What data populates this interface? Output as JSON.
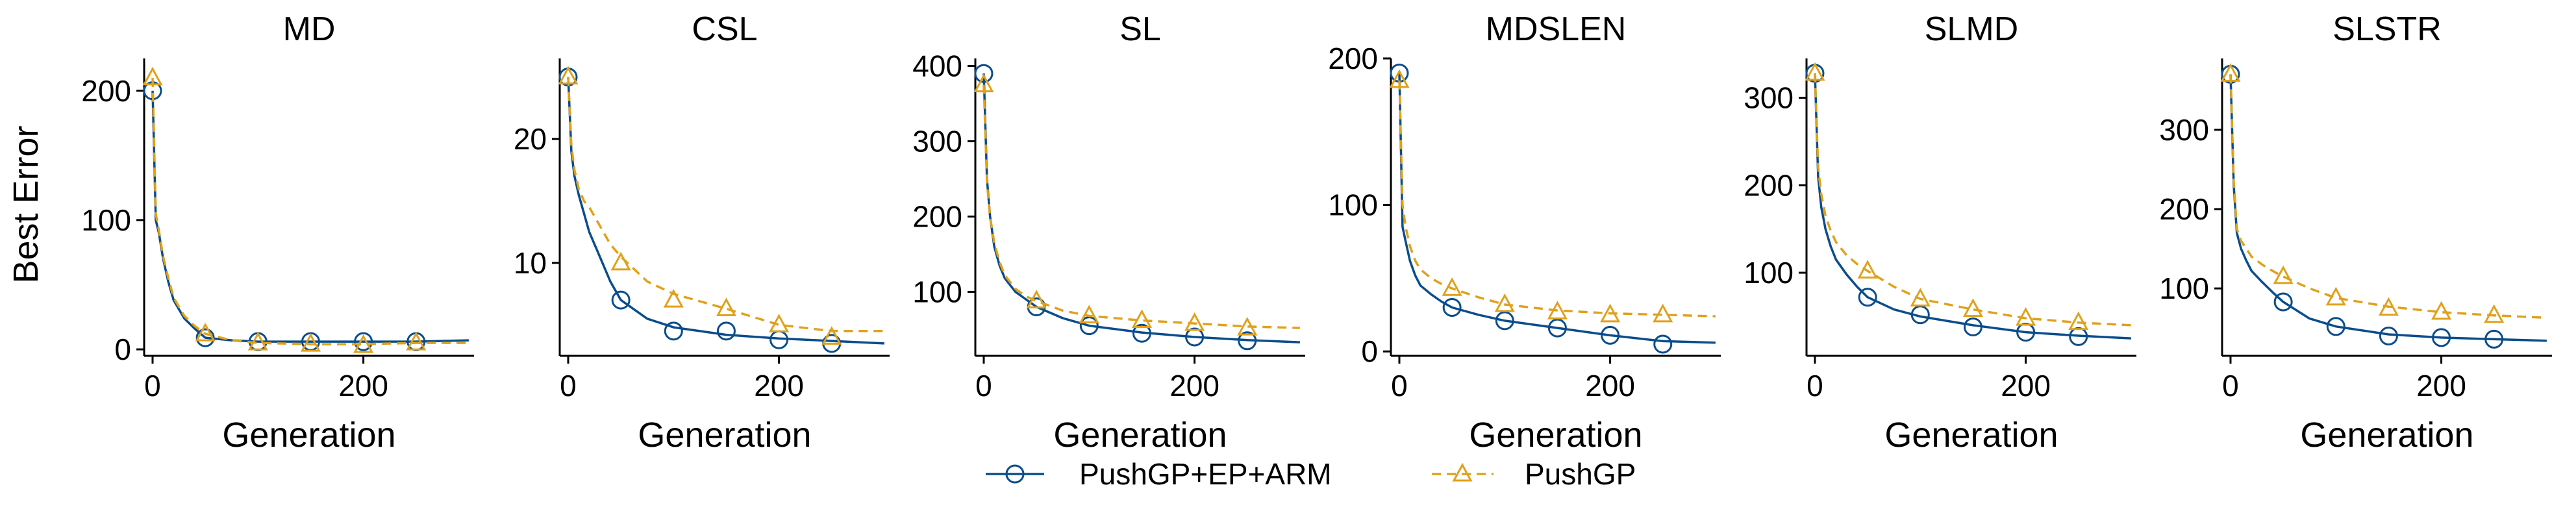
{
  "chart_data": [
    {
      "type": "line",
      "title": "MD",
      "xlabel": "Generation",
      "ylabel": "Best Error",
      "xlim": [
        -8,
        305
      ],
      "ylim": [
        -5,
        225
      ],
      "xticks": [
        0,
        200
      ],
      "yticks": [
        0,
        100,
        200
      ],
      "series": [
        {
          "name": "PushGP+EP+ARM",
          "x": [
            0,
            3,
            6,
            10,
            15,
            20,
            30,
            40,
            50,
            75,
            100,
            150,
            200,
            250,
            300
          ],
          "y": [
            200,
            100,
            90,
            70,
            52,
            38,
            24,
            16,
            9,
            7,
            6,
            6,
            6,
            6,
            7
          ],
          "markers_x": [
            0,
            50,
            100,
            150,
            200,
            250
          ],
          "markers_y": [
            200,
            9,
            6,
            6,
            6,
            6
          ]
        },
        {
          "name": "PushGP",
          "x": [
            0,
            3,
            6,
            10,
            15,
            20,
            30,
            40,
            50,
            75,
            100,
            150,
            200,
            250,
            300
          ],
          "y": [
            210,
            105,
            92,
            72,
            55,
            40,
            26,
            18,
            12,
            7,
            5,
            4,
            4,
            5,
            5
          ],
          "markers_x": [
            0,
            50,
            100,
            150,
            200,
            250
          ],
          "markers_y": [
            210,
            12,
            5,
            4,
            3,
            5
          ]
        }
      ]
    },
    {
      "type": "line",
      "title": "CSL",
      "xlabel": "Generation",
      "ylabel": "",
      "xlim": [
        -8,
        305
      ],
      "ylim": [
        2.5,
        26.5
      ],
      "xticks": [
        0,
        200
      ],
      "yticks": [
        10,
        20
      ],
      "series": [
        {
          "name": "PushGP+EP+ARM",
          "x": [
            0,
            3,
            6,
            10,
            15,
            20,
            30,
            40,
            50,
            75,
            100,
            150,
            200,
            250,
            300
          ],
          "y": [
            25,
            19,
            17,
            15.5,
            14,
            12.5,
            10.5,
            8.5,
            7,
            5.5,
            4.8,
            4.2,
            3.9,
            3.7,
            3.5
          ],
          "markers_x": [
            0,
            50,
            100,
            150,
            200,
            250
          ],
          "markers_y": [
            25,
            7,
            4.5,
            4.5,
            3.8,
            3.5
          ]
        },
        {
          "name": "PushGP",
          "x": [
            0,
            3,
            6,
            10,
            15,
            20,
            30,
            40,
            50,
            75,
            100,
            150,
            200,
            250,
            300
          ],
          "y": [
            25,
            19.5,
            17.5,
            16,
            15,
            14.5,
            13,
            11.5,
            10.5,
            8.5,
            7.5,
            6.3,
            5,
            4.5,
            4.5
          ],
          "markers_x": [
            0,
            50,
            100,
            150,
            200,
            250
          ],
          "markers_y": [
            25,
            10,
            7,
            6.3,
            5,
            4
          ]
        }
      ]
    },
    {
      "type": "line",
      "title": "SL",
      "xlabel": "Generation",
      "ylabel": "",
      "xlim": [
        -8,
        305
      ],
      "ylim": [
        15,
        410
      ],
      "xticks": [
        0,
        200
      ],
      "yticks": [
        100,
        200,
        300,
        400
      ],
      "series": [
        {
          "name": "PushGP+EP+ARM",
          "x": [
            0,
            3,
            6,
            10,
            15,
            20,
            30,
            40,
            50,
            75,
            100,
            150,
            200,
            250,
            300
          ],
          "y": [
            390,
            250,
            200,
            160,
            135,
            118,
            100,
            90,
            80,
            65,
            55,
            46,
            40,
            36,
            33
          ],
          "markers_x": [
            0,
            50,
            100,
            150,
            200,
            250
          ],
          "markers_y": [
            390,
            80,
            55,
            45,
            40,
            35
          ]
        },
        {
          "name": "PushGP",
          "x": [
            0,
            3,
            6,
            10,
            15,
            20,
            30,
            40,
            50,
            75,
            100,
            150,
            200,
            250,
            300
          ],
          "y": [
            375,
            245,
            200,
            165,
            140,
            122,
            104,
            94,
            88,
            75,
            68,
            62,
            58,
            54,
            52
          ],
          "markers_x": [
            0,
            50,
            100,
            150,
            200,
            250
          ],
          "markers_y": [
            375,
            88,
            68,
            62,
            58,
            52
          ]
        }
      ]
    },
    {
      "type": "line",
      "title": "MDSLEN",
      "xlabel": "Generation",
      "ylabel": "",
      "xlim": [
        -8,
        305
      ],
      "ylim": [
        -3,
        200
      ],
      "xticks": [
        0,
        200
      ],
      "yticks": [
        0,
        100,
        200
      ],
      "series": [
        {
          "name": "PushGP+EP+ARM",
          "x": [
            0,
            3,
            6,
            10,
            15,
            20,
            30,
            40,
            50,
            75,
            100,
            150,
            200,
            250,
            300
          ],
          "y": [
            190,
            85,
            75,
            62,
            52,
            45,
            39,
            34,
            30,
            25,
            21,
            16,
            11,
            7,
            6
          ],
          "markers_x": [
            0,
            50,
            100,
            150,
            200,
            250
          ],
          "markers_y": [
            190,
            30,
            21,
            16,
            11,
            5
          ]
        },
        {
          "name": "PushGP",
          "x": [
            0,
            3,
            6,
            10,
            15,
            20,
            30,
            40,
            50,
            75,
            100,
            150,
            200,
            250,
            300
          ],
          "y": [
            185,
            100,
            85,
            72,
            62,
            56,
            50,
            46,
            43,
            37,
            32,
            28,
            26,
            25,
            24
          ],
          "markers_x": [
            0,
            50,
            100,
            150,
            200,
            250
          ],
          "markers_y": [
            185,
            43,
            32,
            27,
            25,
            25
          ]
        }
      ]
    },
    {
      "type": "line",
      "title": "SLMD",
      "xlabel": "Generation",
      "ylabel": "",
      "xlim": [
        -8,
        305
      ],
      "ylim": [
        5,
        345
      ],
      "xticks": [
        0,
        200
      ],
      "yticks": [
        100,
        200,
        300
      ],
      "series": [
        {
          "name": "PushGP+EP+ARM",
          "x": [
            0,
            3,
            6,
            10,
            15,
            20,
            30,
            40,
            50,
            75,
            100,
            150,
            200,
            250,
            300
          ],
          "y": [
            328,
            210,
            175,
            150,
            130,
            115,
            98,
            84,
            72,
            58,
            50,
            40,
            32,
            28,
            25
          ],
          "markers_x": [
            0,
            50,
            100,
            150,
            200,
            250
          ],
          "markers_y": [
            328,
            72,
            52,
            38,
            32,
            27
          ]
        },
        {
          "name": "PushGP",
          "x": [
            0,
            3,
            6,
            10,
            15,
            20,
            30,
            40,
            50,
            75,
            100,
            150,
            200,
            250,
            300
          ],
          "y": [
            328,
            220,
            190,
            165,
            148,
            135,
            120,
            110,
            102,
            84,
            70,
            58,
            48,
            43,
            40
          ],
          "markers_x": [
            0,
            50,
            100,
            150,
            200,
            250
          ],
          "markers_y": [
            328,
            102,
            70,
            58,
            48,
            43
          ]
        }
      ]
    },
    {
      "type": "line",
      "title": "SLSTR",
      "xlabel": "Generation",
      "ylabel": "",
      "xlim": [
        -8,
        305
      ],
      "ylim": [
        15,
        390
      ],
      "xticks": [
        0,
        200
      ],
      "yticks": [
        100,
        200,
        300
      ],
      "series": [
        {
          "name": "PushGP+EP+ARM",
          "x": [
            0,
            3,
            6,
            10,
            15,
            20,
            30,
            40,
            50,
            75,
            100,
            150,
            200,
            250,
            300
          ],
          "y": [
            370,
            230,
            170,
            150,
            135,
            122,
            108,
            95,
            83,
            62,
            52,
            42,
            38,
            36,
            34
          ],
          "markers_x": [
            0,
            50,
            100,
            150,
            200,
            250
          ],
          "markers_y": [
            370,
            83,
            52,
            40,
            38,
            36
          ]
        },
        {
          "name": "PushGP",
          "x": [
            0,
            3,
            6,
            10,
            15,
            20,
            30,
            40,
            50,
            75,
            100,
            150,
            200,
            250,
            300
          ],
          "y": [
            370,
            235,
            175,
            160,
            150,
            140,
            130,
            122,
            115,
            100,
            88,
            77,
            70,
            66,
            63
          ],
          "markers_x": [
            0,
            50,
            100,
            150,
            200,
            250
          ],
          "markers_y": [
            370,
            115,
            88,
            75,
            70,
            66
          ]
        }
      ]
    }
  ],
  "legend": {
    "placement": "bottom-center",
    "items": [
      {
        "label": "PushGP+EP+ARM",
        "marker": "circle",
        "line": "solid",
        "color": "#0a4d8c"
      },
      {
        "label": "PushGP",
        "marker": "triangle",
        "line": "dashed",
        "color": "#e0a11b"
      }
    ]
  },
  "colors": {
    "series_1": "#0a4d8c",
    "series_2": "#e0a11b"
  }
}
